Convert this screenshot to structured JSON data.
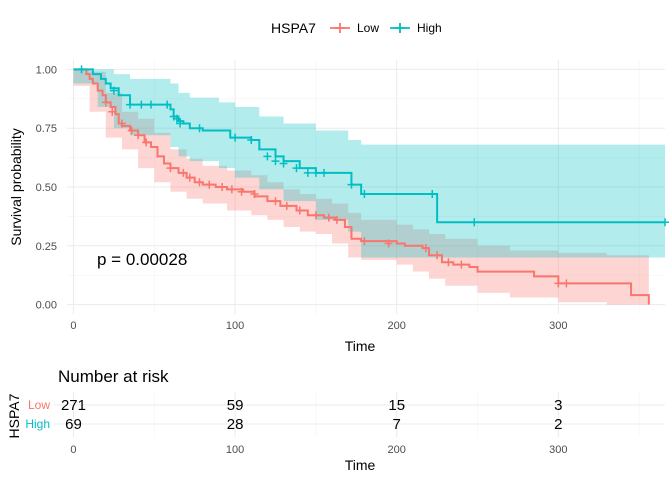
{
  "chart_data": {
    "type": "line",
    "subtype": "kaplan-meier",
    "legend": {
      "title": "HSPA7",
      "position": "top",
      "entries": [
        {
          "name": "Low",
          "color": "#F8766D"
        },
        {
          "name": "High",
          "color": "#00BFC4"
        }
      ]
    },
    "xlabel": "Time",
    "ylabel": "Survival probability",
    "xlim": [
      -4,
      366
    ],
    "ylim": [
      -0.04,
      1.04
    ],
    "xticks": [
      0,
      100,
      200,
      300
    ],
    "yticks": [
      0.0,
      0.25,
      0.5,
      0.75,
      1.0
    ],
    "ytick_labels": [
      "0.00",
      "0.25",
      "0.50",
      "0.75",
      "1.00"
    ],
    "grid": true,
    "pvalue_text": "p = 0.00028",
    "series": [
      {
        "name": "Low",
        "color": "#F8766D",
        "fill": "#F8766D",
        "steps": [
          [
            0,
            1.0
          ],
          [
            8,
            0.98
          ],
          [
            10,
            0.96
          ],
          [
            12,
            0.94
          ],
          [
            15,
            0.91
          ],
          [
            18,
            0.89
          ],
          [
            20,
            0.86
          ],
          [
            23,
            0.84
          ],
          [
            26,
            0.81
          ],
          [
            28,
            0.77
          ],
          [
            30,
            0.76
          ],
          [
            35,
            0.74
          ],
          [
            40,
            0.72
          ],
          [
            44,
            0.69
          ],
          [
            48,
            0.67
          ],
          [
            52,
            0.63
          ],
          [
            56,
            0.6
          ],
          [
            60,
            0.58
          ],
          [
            65,
            0.56
          ],
          [
            70,
            0.54
          ],
          [
            75,
            0.52
          ],
          [
            80,
            0.51
          ],
          [
            88,
            0.5
          ],
          [
            95,
            0.49
          ],
          [
            105,
            0.48
          ],
          [
            112,
            0.46
          ],
          [
            120,
            0.44
          ],
          [
            128,
            0.42
          ],
          [
            138,
            0.4
          ],
          [
            145,
            0.38
          ],
          [
            155,
            0.37
          ],
          [
            162,
            0.36
          ],
          [
            168,
            0.33
          ],
          [
            172,
            0.28
          ],
          [
            178,
            0.27
          ],
          [
            200,
            0.26
          ],
          [
            205,
            0.25
          ],
          [
            216,
            0.24
          ],
          [
            220,
            0.21
          ],
          [
            228,
            0.18
          ],
          [
            235,
            0.17
          ],
          [
            245,
            0.16
          ],
          [
            250,
            0.14
          ],
          [
            285,
            0.12
          ],
          [
            300,
            0.09
          ],
          [
            345,
            0.04
          ],
          [
            356,
            0.0
          ]
        ],
        "lower": [
          [
            0,
            1.0
          ],
          [
            10,
            0.93
          ],
          [
            20,
            0.82
          ],
          [
            30,
            0.71
          ],
          [
            40,
            0.66
          ],
          [
            50,
            0.58
          ],
          [
            60,
            0.52
          ],
          [
            70,
            0.48
          ],
          [
            80,
            0.45
          ],
          [
            95,
            0.43
          ],
          [
            110,
            0.4
          ],
          [
            120,
            0.38
          ],
          [
            130,
            0.36
          ],
          [
            140,
            0.33
          ],
          [
            150,
            0.31
          ],
          [
            160,
            0.3
          ],
          [
            170,
            0.26
          ],
          [
            178,
            0.2
          ],
          [
            200,
            0.19
          ],
          [
            210,
            0.17
          ],
          [
            220,
            0.14
          ],
          [
            230,
            0.11
          ],
          [
            250,
            0.08
          ],
          [
            270,
            0.05
          ],
          [
            300,
            0.03
          ],
          [
            330,
            0.01
          ],
          [
            356,
            0.0
          ]
        ],
        "upper": [
          [
            0,
            1.0
          ],
          [
            10,
            0.99
          ],
          [
            20,
            0.9
          ],
          [
            30,
            0.82
          ],
          [
            40,
            0.79
          ],
          [
            50,
            0.73
          ],
          [
            60,
            0.66
          ],
          [
            70,
            0.62
          ],
          [
            80,
            0.59
          ],
          [
            95,
            0.57
          ],
          [
            110,
            0.55
          ],
          [
            120,
            0.52
          ],
          [
            130,
            0.49
          ],
          [
            140,
            0.47
          ],
          [
            150,
            0.45
          ],
          [
            160,
            0.43
          ],
          [
            170,
            0.39
          ],
          [
            178,
            0.36
          ],
          [
            200,
            0.34
          ],
          [
            210,
            0.32
          ],
          [
            220,
            0.3
          ],
          [
            230,
            0.28
          ],
          [
            250,
            0.25
          ],
          [
            270,
            0.23
          ],
          [
            300,
            0.22
          ],
          [
            330,
            0.21
          ],
          [
            356,
            0.21
          ]
        ],
        "censors": [
          [
            20,
            0.86
          ],
          [
            24,
            0.82
          ],
          [
            30,
            0.77
          ],
          [
            36,
            0.74
          ],
          [
            40,
            0.72
          ],
          [
            45,
            0.69
          ],
          [
            60,
            0.58
          ],
          [
            68,
            0.56
          ],
          [
            72,
            0.54
          ],
          [
            78,
            0.52
          ],
          [
            84,
            0.51
          ],
          [
            92,
            0.5
          ],
          [
            98,
            0.49
          ],
          [
            104,
            0.48
          ],
          [
            112,
            0.47
          ],
          [
            125,
            0.44
          ],
          [
            132,
            0.42
          ],
          [
            140,
            0.4
          ],
          [
            150,
            0.38
          ],
          [
            158,
            0.37
          ],
          [
            163,
            0.36
          ],
          [
            180,
            0.27
          ],
          [
            195,
            0.26
          ],
          [
            218,
            0.24
          ],
          [
            225,
            0.21
          ],
          [
            232,
            0.18
          ],
          [
            240,
            0.17
          ],
          [
            300,
            0.09
          ],
          [
            305,
            0.09
          ]
        ]
      },
      {
        "name": "High",
        "color": "#00BFC4",
        "fill": "#00BFC4",
        "steps": [
          [
            0,
            1.0
          ],
          [
            12,
            0.98
          ],
          [
            17,
            0.96
          ],
          [
            20,
            0.94
          ],
          [
            23,
            0.92
          ],
          [
            28,
            0.89
          ],
          [
            35,
            0.85
          ],
          [
            60,
            0.83
          ],
          [
            62,
            0.8
          ],
          [
            65,
            0.78
          ],
          [
            68,
            0.77
          ],
          [
            72,
            0.75
          ],
          [
            80,
            0.74
          ],
          [
            97,
            0.71
          ],
          [
            110,
            0.7
          ],
          [
            115,
            0.66
          ],
          [
            125,
            0.63
          ],
          [
            130,
            0.61
          ],
          [
            140,
            0.58
          ],
          [
            150,
            0.56
          ],
          [
            172,
            0.51
          ],
          [
            178,
            0.47
          ],
          [
            225,
            0.35
          ],
          [
            366,
            0.35
          ]
        ],
        "lower": [
          [
            0,
            1.0
          ],
          [
            15,
            0.94
          ],
          [
            25,
            0.84
          ],
          [
            35,
            0.75
          ],
          [
            60,
            0.72
          ],
          [
            65,
            0.67
          ],
          [
            72,
            0.63
          ],
          [
            90,
            0.61
          ],
          [
            100,
            0.58
          ],
          [
            115,
            0.54
          ],
          [
            130,
            0.49
          ],
          [
            150,
            0.44
          ],
          [
            170,
            0.36
          ],
          [
            178,
            0.31
          ],
          [
            225,
            0.2
          ],
          [
            366,
            0.2
          ]
        ],
        "upper": [
          [
            0,
            1.0
          ],
          [
            15,
            1.0
          ],
          [
            25,
            0.98
          ],
          [
            35,
            0.96
          ],
          [
            60,
            0.94
          ],
          [
            65,
            0.9
          ],
          [
            72,
            0.88
          ],
          [
            90,
            0.86
          ],
          [
            100,
            0.84
          ],
          [
            115,
            0.8
          ],
          [
            130,
            0.77
          ],
          [
            150,
            0.74
          ],
          [
            170,
            0.7
          ],
          [
            178,
            0.68
          ],
          [
            225,
            0.68
          ],
          [
            366,
            0.68
          ]
        ],
        "censors": [
          [
            5,
            1.0
          ],
          [
            25,
            0.91
          ],
          [
            35,
            0.85
          ],
          [
            42,
            0.85
          ],
          [
            48,
            0.85
          ],
          [
            58,
            0.85
          ],
          [
            62,
            0.8
          ],
          [
            64,
            0.79
          ],
          [
            66,
            0.77
          ],
          [
            78,
            0.75
          ],
          [
            100,
            0.71
          ],
          [
            110,
            0.7
          ],
          [
            120,
            0.63
          ],
          [
            125,
            0.61
          ],
          [
            130,
            0.6
          ],
          [
            138,
            0.58
          ],
          [
            145,
            0.56
          ],
          [
            150,
            0.56
          ],
          [
            155,
            0.56
          ],
          [
            172,
            0.51
          ],
          [
            180,
            0.47
          ],
          [
            222,
            0.47
          ],
          [
            248,
            0.35
          ],
          [
            366,
            0.35
          ]
        ]
      }
    ]
  },
  "risk_table": {
    "title": "Number at risk",
    "strata_title": "HSPA7",
    "xlabel": "Time",
    "xticks": [
      0,
      100,
      200,
      300
    ],
    "times": [
      0,
      100,
      200,
      300
    ],
    "rows": [
      {
        "label": "Low",
        "color": "#F8766D",
        "values": [
          "271",
          "59",
          "15",
          "3"
        ]
      },
      {
        "label": "High",
        "color": "#00BFC4",
        "values": [
          "69",
          "28",
          "7",
          "2"
        ]
      }
    ]
  }
}
